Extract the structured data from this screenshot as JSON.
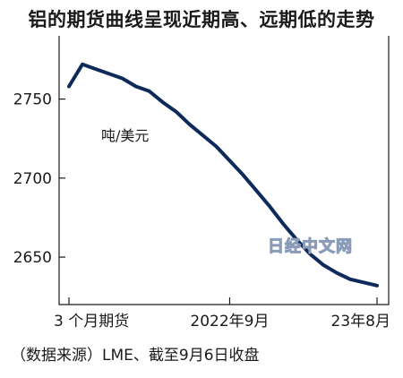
{
  "chart_data": {
    "type": "line",
    "title": "铝的期货曲线呈现近期高、远期低的走势",
    "unit_label": "吨/美元",
    "x_tick_labels": [
      "3 个月期货",
      "2022年9月",
      "23年8月"
    ],
    "x_tick_index": [
      0,
      12,
      23
    ],
    "y_ticks": [
      2650,
      2700,
      2750
    ],
    "ylim": [
      2620,
      2790
    ],
    "series": [
      {
        "color": "#0e2a5a",
        "values": [
          2758,
          2772,
          2769,
          2766,
          2763,
          2758,
          2755,
          2748,
          2742,
          2734,
          2727,
          2720,
          2711,
          2702,
          2692,
          2682,
          2671,
          2661,
          2652,
          2645,
          2640,
          2636,
          2634,
          2632
        ]
      }
    ],
    "grid": false,
    "source": "（数据来源）LME、截至9月6日收盘",
    "watermark": "日经中文网"
  }
}
